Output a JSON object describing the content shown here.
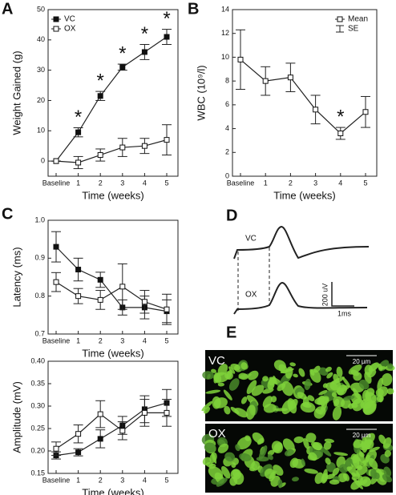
{
  "panel_labels": [
    "A",
    "B",
    "C",
    "D",
    "E"
  ],
  "chart_data": [
    {
      "type": "line",
      "xlabel": "Time (weeks)",
      "ylabel": "Weight Gained (g)",
      "categories": [
        "Baseline",
        "1",
        "2",
        "3",
        "4",
        "5"
      ],
      "ylim": [
        -5,
        50
      ],
      "yticks": [
        0,
        10,
        20,
        30,
        40,
        50
      ],
      "legend": "upper left",
      "series": [
        {
          "name": "VC",
          "color": "#111111",
          "values": [
            0,
            9.5,
            21.5,
            31,
            36,
            41
          ],
          "errors": [
            0,
            1.5,
            1.5,
            1,
            2.5,
            2.5
          ]
        },
        {
          "name": "OX",
          "color": "#ffffff",
          "values": [
            0,
            -0.5,
            2,
            4.5,
            5,
            7
          ],
          "errors": [
            0,
            2,
            2,
            3,
            2.5,
            5
          ]
        }
      ],
      "annotations": [
        {
          "text": "*",
          "x": "1"
        },
        {
          "text": "*",
          "x": "2"
        },
        {
          "text": "*",
          "x": "3"
        },
        {
          "text": "*",
          "x": "4"
        },
        {
          "text": "*",
          "x": "5"
        }
      ]
    },
    {
      "type": "line",
      "xlabel": "Time (weeks)",
      "ylabel": "WBC (10⁹/l)",
      "categories": [
        "Baseline",
        "1",
        "2",
        "3",
        "4",
        "5"
      ],
      "ylim": [
        0,
        14
      ],
      "yticks": [
        0,
        2,
        4,
        6,
        8,
        10,
        12,
        14
      ],
      "legend": "upper right",
      "series": [
        {
          "name": "Mean",
          "error_name": "SE",
          "color": "#ffffff",
          "values": [
            9.8,
            8.0,
            8.3,
            5.6,
            3.6,
            5.4
          ],
          "errors": [
            2.5,
            1.2,
            1.2,
            1.2,
            0.5,
            1.3
          ]
        }
      ],
      "annotations": [
        {
          "text": "*",
          "x": "4"
        }
      ]
    },
    {
      "type": "line",
      "xlabel": "Time (weeks)",
      "ylabel": "Latency (ms)",
      "categories": [
        "Baseline",
        "1",
        "2",
        "3",
        "4",
        "5"
      ],
      "ylim": [
        0.7,
        1.0
      ],
      "yticks": [
        0.7,
        0.8,
        0.9,
        {
          "value": 1.0,
          "label": "1.0"
        }
      ],
      "series": [
        {
          "name": "VC",
          "color": "#111111",
          "values": [
            0.93,
            0.87,
            0.843,
            0.77,
            0.77,
            0.76
          ],
          "errors": [
            0.04,
            0.03,
            0.02,
            0.02,
            0.03,
            0.03
          ]
        },
        {
          "name": "OX",
          "color": "#ffffff",
          "values": [
            0.837,
            0.8,
            0.79,
            0.825,
            0.785,
            0.765
          ],
          "errors": [
            0.025,
            0.02,
            0.025,
            0.06,
            0.03,
            0.04
          ]
        }
      ]
    },
    {
      "type": "line",
      "xlabel": "Time (weeks)",
      "ylabel": "Amplitude (mV)",
      "categories": [
        "Baseline",
        "1",
        "2",
        "3",
        "4",
        "5"
      ],
      "ylim": [
        0.15,
        0.4
      ],
      "yticks": [
        0.15,
        {
          "value": 0.2,
          "label": "0.20"
        },
        0.25,
        {
          "value": 0.3,
          "label": "0.30"
        },
        0.35,
        {
          "value": 0.4,
          "label": "0.40"
        }
      ],
      "series": [
        {
          "name": "VC",
          "color": "#111111",
          "values": [
            0.19,
            0.197,
            0.227,
            0.257,
            0.293,
            0.307
          ],
          "errors": [
            0.008,
            0.008,
            0.02,
            0.02,
            0.03,
            0.03
          ]
        },
        {
          "name": "OX",
          "color": "#ffffff",
          "values": [
            0.205,
            0.238,
            0.282,
            0.245,
            0.285,
            0.285
          ],
          "errors": [
            0.015,
            0.02,
            0.03,
            0.02,
            0.03,
            0.03
          ]
        }
      ]
    }
  ],
  "waveform": {
    "labels": [
      "VC",
      "OX"
    ],
    "scale_y": "200 uV",
    "scale_x": "1ms"
  },
  "images": [
    {
      "label": "VC",
      "scale_bar": "20 µm"
    },
    {
      "label": "OX",
      "scale_bar": "20 µm"
    }
  ]
}
